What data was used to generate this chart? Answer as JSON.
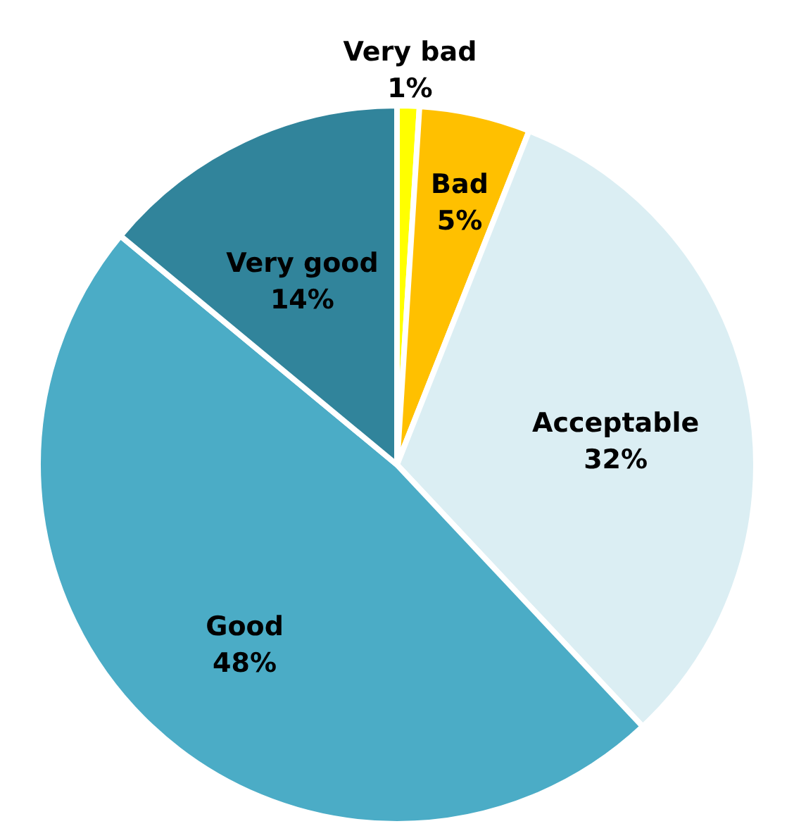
{
  "chart_data": {
    "type": "pie",
    "categories": [
      "Very bad",
      "Bad",
      "Acceptable",
      "Good",
      "Very good"
    ],
    "values": [
      1,
      5,
      32,
      48,
      14
    ],
    "value_labels": [
      "1%",
      "5%",
      "32%",
      "48%",
      "14%"
    ],
    "colors": [
      "#ffff00",
      "#ffc000",
      "#dbeef3",
      "#4bacc6",
      "#31849b"
    ]
  }
}
